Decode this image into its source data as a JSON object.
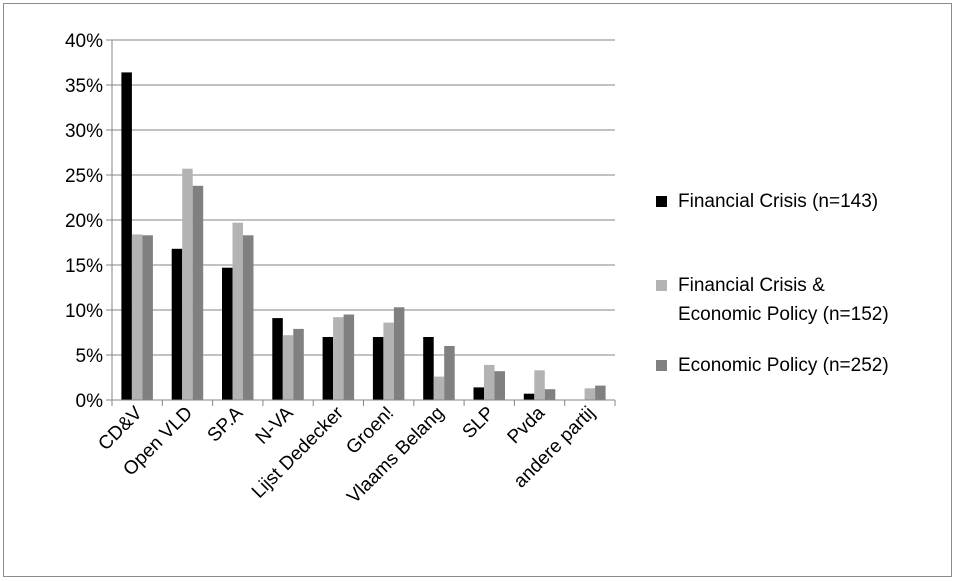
{
  "chart_data": {
    "type": "bar",
    "categories": [
      "CD&V",
      "Open VLD",
      "SP.A",
      "N-VA",
      "Lijst Dedecker",
      "Groen!",
      "Vlaams Belang",
      "SLP",
      "Pvda",
      "andere partij"
    ],
    "series": [
      {
        "name": "Financial Crisis (n=143)",
        "legend_lines": [
          "Financial Crisis (n=143)"
        ],
        "color": "#000000",
        "values": [
          36.4,
          16.8,
          14.7,
          9.1,
          7.0,
          7.0,
          7.0,
          1.4,
          0.7,
          0.0
        ]
      },
      {
        "name": "Financial Crisis & Economic Policy (n=152)",
        "legend_lines": [
          "Financial Crisis &",
          "Economic Policy (n=152)"
        ],
        "color": "#b3b3b3",
        "values": [
          18.4,
          25.7,
          19.7,
          7.2,
          9.2,
          8.6,
          2.6,
          3.9,
          3.3,
          1.3
        ]
      },
      {
        "name": "Economic Policy (n=252)",
        "legend_lines": [
          "Economic Policy (n=252)"
        ],
        "color": "#808080",
        "values": [
          18.3,
          23.8,
          18.3,
          7.9,
          9.5,
          10.3,
          6.0,
          3.2,
          1.2,
          1.6
        ]
      }
    ],
    "yticks": [
      "0%",
      "5%",
      "10%",
      "15%",
      "20%",
      "25%",
      "30%",
      "35%",
      "40%"
    ],
    "ylim": [
      0,
      40
    ],
    "grid": true,
    "legend_position": "right",
    "gridline_color": "#868686",
    "axis_color": "#868686"
  }
}
